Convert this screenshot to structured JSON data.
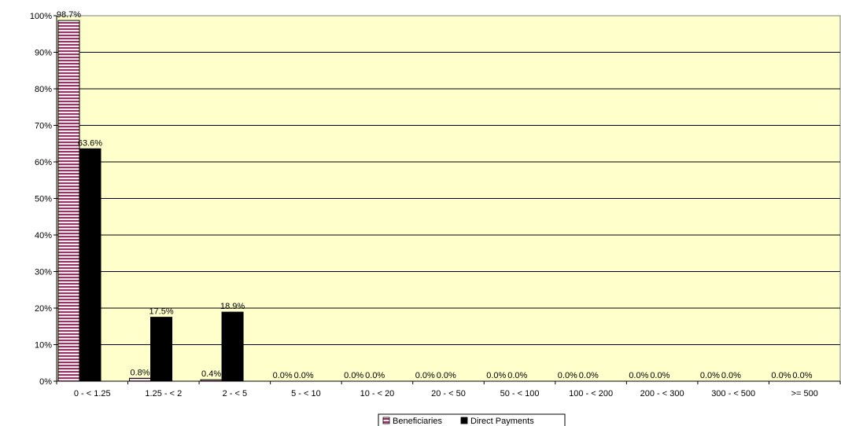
{
  "chart_data": {
    "type": "bar",
    "categories": [
      "0 - < 1.25",
      "1.25 - < 2",
      "2 - < 5",
      "5 - < 10",
      "10 - < 20",
      "20 - < 50",
      "50 - < 100",
      "100 - < 200",
      "200 - < 300",
      "300 - < 500",
      ">= 500"
    ],
    "series": [
      {
        "name": "Beneficiaries",
        "values": [
          98.7,
          0.8,
          0.4,
          0.0,
          0.0,
          0.0,
          0.0,
          0.0,
          0.0,
          0.0,
          0.0
        ],
        "labels": [
          "98.7%",
          "0.8%",
          "0.4%",
          "0.0%",
          "0.0%",
          "0.0%",
          "0.0%",
          "0.0%",
          "0.0%",
          "0.0%",
          "0.0%"
        ],
        "color": "#993366",
        "pattern": "horizontal-stripes"
      },
      {
        "name": "Direct Payments",
        "values": [
          63.6,
          17.5,
          18.9,
          0.0,
          0.0,
          0.0,
          0.0,
          0.0,
          0.0,
          0.0,
          0.0
        ],
        "labels": [
          "63.6%",
          "17.5%",
          "18.9%",
          "0.0%",
          "0.0%",
          "0.0%",
          "0.0%",
          "0.0%",
          "0.0%",
          "0.0%",
          "0.0%"
        ],
        "color": "#000000"
      }
    ],
    "yticks": [
      "0%",
      "10%",
      "20%",
      "30%",
      "40%",
      "50%",
      "60%",
      "70%",
      "80%",
      "90%",
      "100%"
    ],
    "ylim": [
      0,
      100
    ],
    "grid": true,
    "plot_background": "#ffffcc",
    "legend_position": "bottom-center"
  }
}
